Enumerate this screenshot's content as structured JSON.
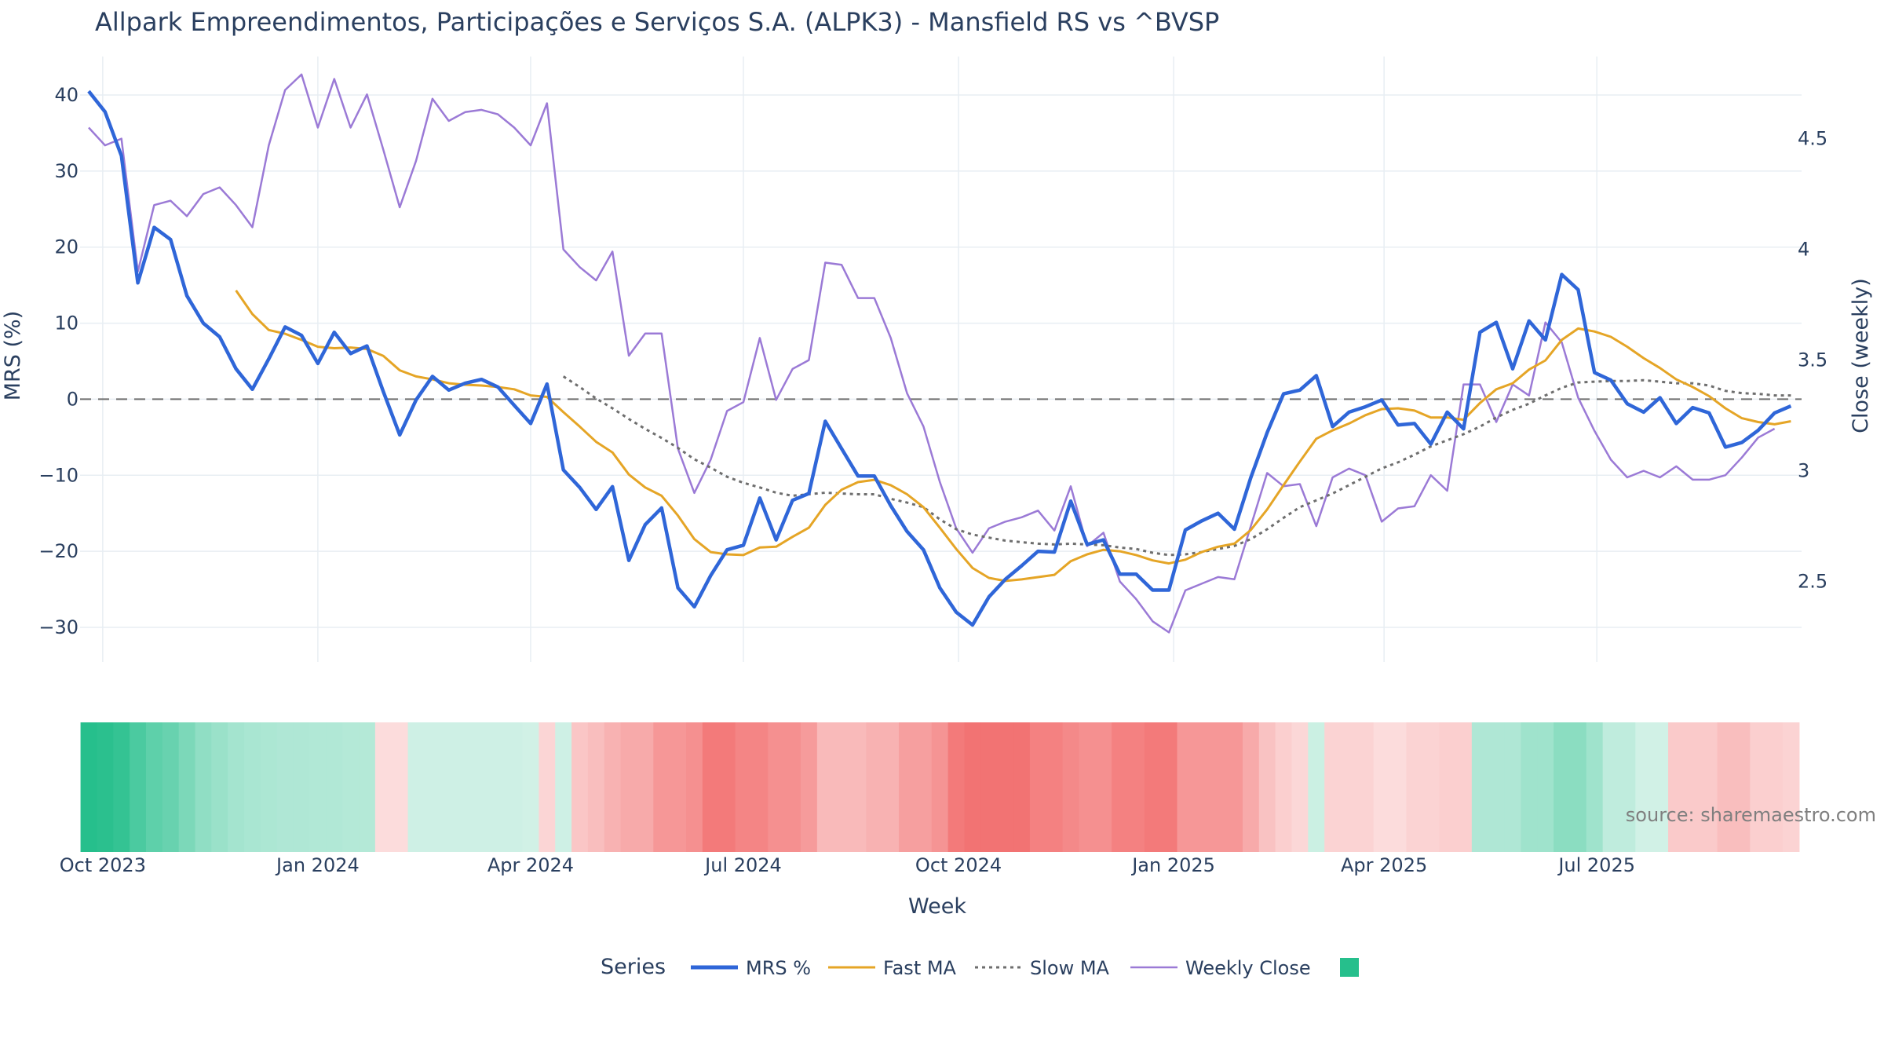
{
  "chart_data": {
    "type": "line",
    "title": "Allpark Empreendimentos, Participações e Serviços S.A. (ALPK3) - Mansfield RS vs ^BVSP",
    "xlabel": "Week",
    "ylabel": "MRS (%)",
    "y2label": "Close (weekly)",
    "source": "source: sharemaestro.com",
    "x_start": "2023-09-25",
    "x_ticks": [
      {
        "label": "Oct 2023",
        "date": "2023-10-01"
      },
      {
        "label": "Jan 2024",
        "date": "2024-01-01"
      },
      {
        "label": "Apr 2024",
        "date": "2024-04-01"
      },
      {
        "label": "Jul 2024",
        "date": "2024-07-01"
      },
      {
        "label": "Oct 2024",
        "date": "2024-10-01"
      },
      {
        "label": "Jan 2025",
        "date": "2025-01-01"
      },
      {
        "label": "Apr 2025",
        "date": "2025-04-01"
      },
      {
        "label": "Jul 2025",
        "date": "2025-07-01"
      }
    ],
    "y_ticks": [
      40,
      30,
      20,
      10,
      0,
      -10,
      -20,
      -30
    ],
    "y_tick_labels": [
      "40",
      "30",
      "20",
      "10",
      "0",
      "−10",
      "−20",
      "−30"
    ],
    "ylim": [
      -33,
      43
    ],
    "y2_ticks": [
      4.5,
      4,
      3.5,
      3,
      2.5
    ],
    "y2_tick_labels": [
      "4.5",
      "4",
      "3.5",
      "3",
      "2.5"
    ],
    "y2lim": [
      2.19,
      4.8
    ],
    "zero_line": 0,
    "legend": {
      "title": "Series",
      "placement": "bottom-center",
      "items": [
        {
          "label": "MRS %",
          "key": "mrs"
        },
        {
          "label": "Fast MA",
          "key": "fast"
        },
        {
          "label": "Slow MA",
          "key": "slow"
        },
        {
          "label": "Weekly Close",
          "key": "close"
        },
        {
          "label": "",
          "key": "heat"
        }
      ]
    },
    "colors": {
      "mrs": "#2f66d8",
      "fast": "#e5a526",
      "slow": "#6e6e6e",
      "close": "#9b7ad6",
      "heat_pos": "#26bf8c",
      "heat_neg": "#f05a5a",
      "zero": "#6e6e6e",
      "grid": "#e8eef3"
    },
    "series": {
      "mrs": [
        40.5,
        37.8,
        32.0,
        15.3,
        22.6,
        21.0,
        13.6,
        10.0,
        8.2,
        4.0,
        1.3,
        5.3,
        9.5,
        8.4,
        4.7,
        8.8,
        6.0,
        7.0,
        1.0,
        -4.7,
        -0.1,
        3.0,
        1.2,
        2.1,
        2.6,
        1.6,
        -0.8,
        -3.2,
        2.0,
        -9.3,
        -11.6,
        -14.5,
        -11.5,
        -21.2,
        -16.5,
        -14.3,
        -24.8,
        -27.3,
        -23.2,
        -19.8,
        -19.2,
        -13.0,
        -18.5,
        -13.3,
        -12.4,
        -2.9,
        -6.5,
        -10.1,
        -10.1,
        -14.0,
        -17.4,
        -19.8,
        -24.8,
        -28.0,
        -29.7,
        -26.0,
        -23.7,
        -21.9,
        -20.0,
        -20.1,
        -13.4,
        -19.1,
        -18.5,
        -23.0,
        -23.0,
        -25.1,
        -25.1,
        -17.2,
        -16.0,
        -15.0,
        -17.1,
        -10.3,
        -4.4,
        0.7,
        1.2,
        3.1,
        -3.6,
        -1.7,
        -1.0,
        -0.1,
        -3.4,
        -3.2,
        -5.9,
        -1.7,
        -3.9,
        8.8,
        10.1,
        4.0,
        10.3,
        7.8,
        16.4,
        14.4,
        3.5,
        2.5,
        -0.6,
        -1.7,
        0.2,
        -3.2,
        -1.1,
        -1.8,
        -6.3,
        -5.7,
        -4.1,
        -1.8,
        -0.9
      ],
      "fast": [
        null,
        null,
        null,
        null,
        null,
        null,
        null,
        null,
        null,
        14.3,
        11.2,
        9.1,
        8.6,
        7.8,
        6.9,
        6.7,
        6.8,
        6.6,
        5.7,
        3.8,
        3.0,
        2.6,
        2.1,
        1.9,
        1.8,
        1.6,
        1.3,
        0.5,
        0.3,
        -1.7,
        -3.6,
        -5.6,
        -7.0,
        -9.9,
        -11.6,
        -12.7,
        -15.3,
        -18.4,
        -20.1,
        -20.4,
        -20.5,
        -19.5,
        -19.4,
        -18.1,
        -16.9,
        -13.9,
        -11.9,
        -10.9,
        -10.6,
        -11.3,
        -12.5,
        -14.2,
        -16.9,
        -19.7,
        -22.2,
        -23.5,
        -23.9,
        -23.7,
        -23.4,
        -23.1,
        -21.3,
        -20.4,
        -19.8,
        -20.0,
        -20.5,
        -21.2,
        -21.6,
        -21.1,
        -20.1,
        -19.4,
        -19.0,
        -17.2,
        -14.5,
        -11.3,
        -8.2,
        -5.2,
        -4.1,
        -3.2,
        -2.1,
        -1.3,
        -1.2,
        -1.5,
        -2.4,
        -2.4,
        -2.7,
        -0.5,
        1.3,
        2.1,
        3.9,
        5.1,
        7.8,
        9.3,
        8.9,
        8.2,
        6.9,
        5.4,
        4.1,
        2.6,
        1.6,
        0.4,
        -1.2,
        -2.5,
        -3.0,
        -3.3,
        -2.9
      ],
      "slow": [
        null,
        null,
        null,
        null,
        null,
        null,
        null,
        null,
        null,
        null,
        null,
        null,
        null,
        null,
        null,
        null,
        null,
        null,
        null,
        null,
        null,
        null,
        null,
        null,
        null,
        null,
        null,
        null,
        null,
        3.0,
        1.6,
        0.1,
        -1.2,
        -2.6,
        -3.9,
        -5.1,
        -6.4,
        -7.9,
        -9.0,
        -10.2,
        -11.0,
        -11.6,
        -12.3,
        -12.7,
        -12.5,
        -12.3,
        -12.4,
        -12.5,
        -12.5,
        -13.1,
        -13.6,
        -14.2,
        -15.8,
        -17.1,
        -17.8,
        -18.2,
        -18.6,
        -18.8,
        -19.0,
        -19.1,
        -19.0,
        -19.1,
        -19.2,
        -19.5,
        -19.7,
        -20.2,
        -20.5,
        -20.4,
        -20.1,
        -19.7,
        -19.3,
        -18.4,
        -17.1,
        -15.6,
        -14.2,
        -13.3,
        -12.4,
        -11.3,
        -10.2,
        -9.1,
        -8.3,
        -7.3,
        -6.2,
        -5.4,
        -4.6,
        -3.6,
        -2.4,
        -1.4,
        -0.6,
        0.5,
        1.5,
        2.2,
        2.3,
        2.4,
        2.4,
        2.5,
        2.3,
        2.1,
        2.1,
        1.8,
        1.1,
        0.8,
        0.7,
        0.5,
        0.5
      ],
      "close": [
        4.55,
        4.47,
        4.5,
        3.9,
        4.2,
        4.22,
        4.15,
        4.25,
        4.28,
        4.2,
        4.1,
        4.47,
        4.72,
        4.79,
        4.55,
        4.77,
        4.55,
        4.7,
        4.45,
        4.19,
        4.4,
        4.68,
        4.58,
        4.62,
        4.63,
        4.61,
        4.55,
        4.47,
        4.66,
        4.0,
        3.92,
        3.86,
        3.99,
        3.52,
        3.62,
        3.62,
        3.1,
        2.9,
        3.05,
        3.27,
        3.31,
        3.6,
        3.32,
        3.46,
        3.5,
        3.94,
        3.93,
        3.78,
        3.78,
        3.6,
        3.35,
        3.2,
        2.95,
        2.74,
        2.63,
        2.74,
        2.77,
        2.79,
        2.82,
        2.73,
        2.93,
        2.66,
        2.72,
        2.5,
        2.42,
        2.32,
        2.27,
        2.46,
        2.49,
        2.52,
        2.51,
        2.75,
        2.99,
        2.93,
        2.94,
        2.75,
        2.97,
        3.01,
        2.98,
        2.77,
        2.83,
        2.84,
        2.98,
        2.91,
        3.39,
        3.39,
        3.22,
        3.39,
        3.34,
        3.67,
        3.58,
        3.33,
        3.18,
        3.05,
        2.97,
        3.0,
        2.97,
        3.02,
        2.96,
        2.96,
        2.98,
        3.06,
        3.15,
        3.19
      ]
    },
    "heatmap_strip": [
      36.0,
      35.0,
      33.0,
      28.0,
      24.0,
      22.0,
      18.0,
      14.0,
      12.0,
      10.0,
      9.0,
      8.5,
      8.0,
      8.0,
      7.5,
      7.5,
      7.0,
      7.0,
      -2.0,
      -2.0,
      2.5,
      2.5,
      2.5,
      2.5,
      2.5,
      2.5,
      2.5,
      2.0,
      -3.5,
      2.5,
      -7.0,
      -9.0,
      -12.0,
      -14.0,
      -14.0,
      -19.0,
      -19.0,
      -21.0,
      -27.0,
      -27.0,
      -24.0,
      -24.0,
      -21.0,
      -21.0,
      -18.0,
      -10.0,
      -10.0,
      -10.0,
      -12.0,
      -12.0,
      -17.0,
      -17.0,
      -20.0,
      -27.0,
      -29.0,
      -29.0,
      -29.0,
      -29.0,
      -25.0,
      -25.0,
      -23.0,
      -21.0,
      -21.0,
      -25.0,
      -25.0,
      -27.0,
      -27.0,
      -19.0,
      -19.0,
      -19.0,
      -19.0,
      -14.0,
      -8.0,
      -5.0,
      -3.0,
      3.0,
      -4.0,
      -4.0,
      -4.0,
      -2.0,
      -2.0,
      -4.0,
      -4.0,
      -5.0,
      -5.0,
      8.0,
      8.0,
      8.0,
      11.0,
      11.0,
      15.0,
      15.0,
      11.0,
      5.0,
      5.0,
      2.0,
      2.0,
      -6.0,
      -6.0,
      -6.0,
      -9.0,
      -9.0,
      -5.0,
      -5.0,
      -4.0
    ]
  }
}
